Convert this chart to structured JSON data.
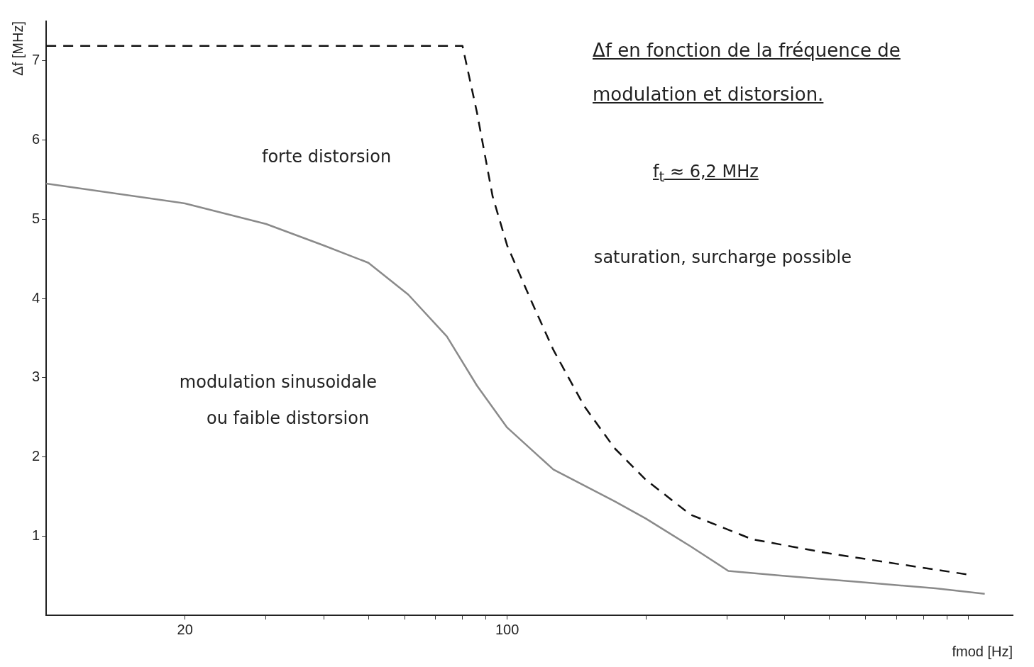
{
  "chart_data": {
    "type": "line",
    "title": "Δf en fonction de la fréquence de modulation et distorsion.",
    "subtitle": "f$_{t}$ ≈ 6,2 MHz",
    "xlabel": "fmod [Hz]",
    "ylabel": "Δf [MHz]",
    "log": "x",
    "xlim": [
      10,
      1250
    ],
    "ylim": [
      0,
      7.5
    ],
    "xticks": [
      {
        "value": 20,
        "label": "20"
      },
      {
        "value": 30,
        "label": null
      },
      {
        "value": 40,
        "label": null
      },
      {
        "value": 50,
        "label": null
      },
      {
        "value": 60,
        "label": null
      },
      {
        "value": 70,
        "label": null
      },
      {
        "value": 80,
        "label": null
      },
      {
        "value": 90,
        "label": null
      },
      {
        "value": 100,
        "label": "100"
      },
      {
        "value": 200,
        "label": null
      },
      {
        "value": 300,
        "label": null
      },
      {
        "value": 400,
        "label": null
      },
      {
        "value": 500,
        "label": null
      },
      {
        "value": 600,
        "label": null
      },
      {
        "value": 700,
        "label": null
      },
      {
        "value": 800,
        "label": null
      },
      {
        "value": 900,
        "label": null
      },
      {
        "value": 1000,
        "label": null
      }
    ],
    "yticks": [
      1,
      2,
      3,
      4,
      5,
      6,
      7
    ],
    "grid": false,
    "legend": false,
    "marker": "none",
    "series": [
      {
        "color": "#8a8a8a",
        "line_style": "solid",
        "x": [
          10,
          20,
          30,
          40,
          50,
          61,
          74,
          86,
          100,
          126,
          171,
          200,
          250,
          302,
          396,
          580,
          850,
          1087
        ],
        "values": [
          5.45,
          5.2,
          4.94,
          4.67,
          4.45,
          4.05,
          3.52,
          2.9,
          2.37,
          1.84,
          1.44,
          1.22,
          0.87,
          0.56,
          0.5,
          0.42,
          0.34,
          0.27
        ]
      },
      {
        "color": "#111111",
        "line_style": "dashed",
        "x": [
          10,
          80,
          86,
          93,
          100,
          113,
          126,
          147,
          171,
          200,
          250,
          340,
          500,
          700,
          1010
        ],
        "values": [
          7.19,
          7.19,
          6.35,
          5.29,
          4.67,
          3.96,
          3.35,
          2.64,
          2.11,
          1.71,
          1.27,
          0.96,
          0.78,
          0.65,
          0.51
        ]
      }
    ],
    "annotations": [
      "forte distorsion",
      "saturation, surcharge possible",
      "modulation sinusoidale",
      "ou faible distorsion"
    ]
  }
}
